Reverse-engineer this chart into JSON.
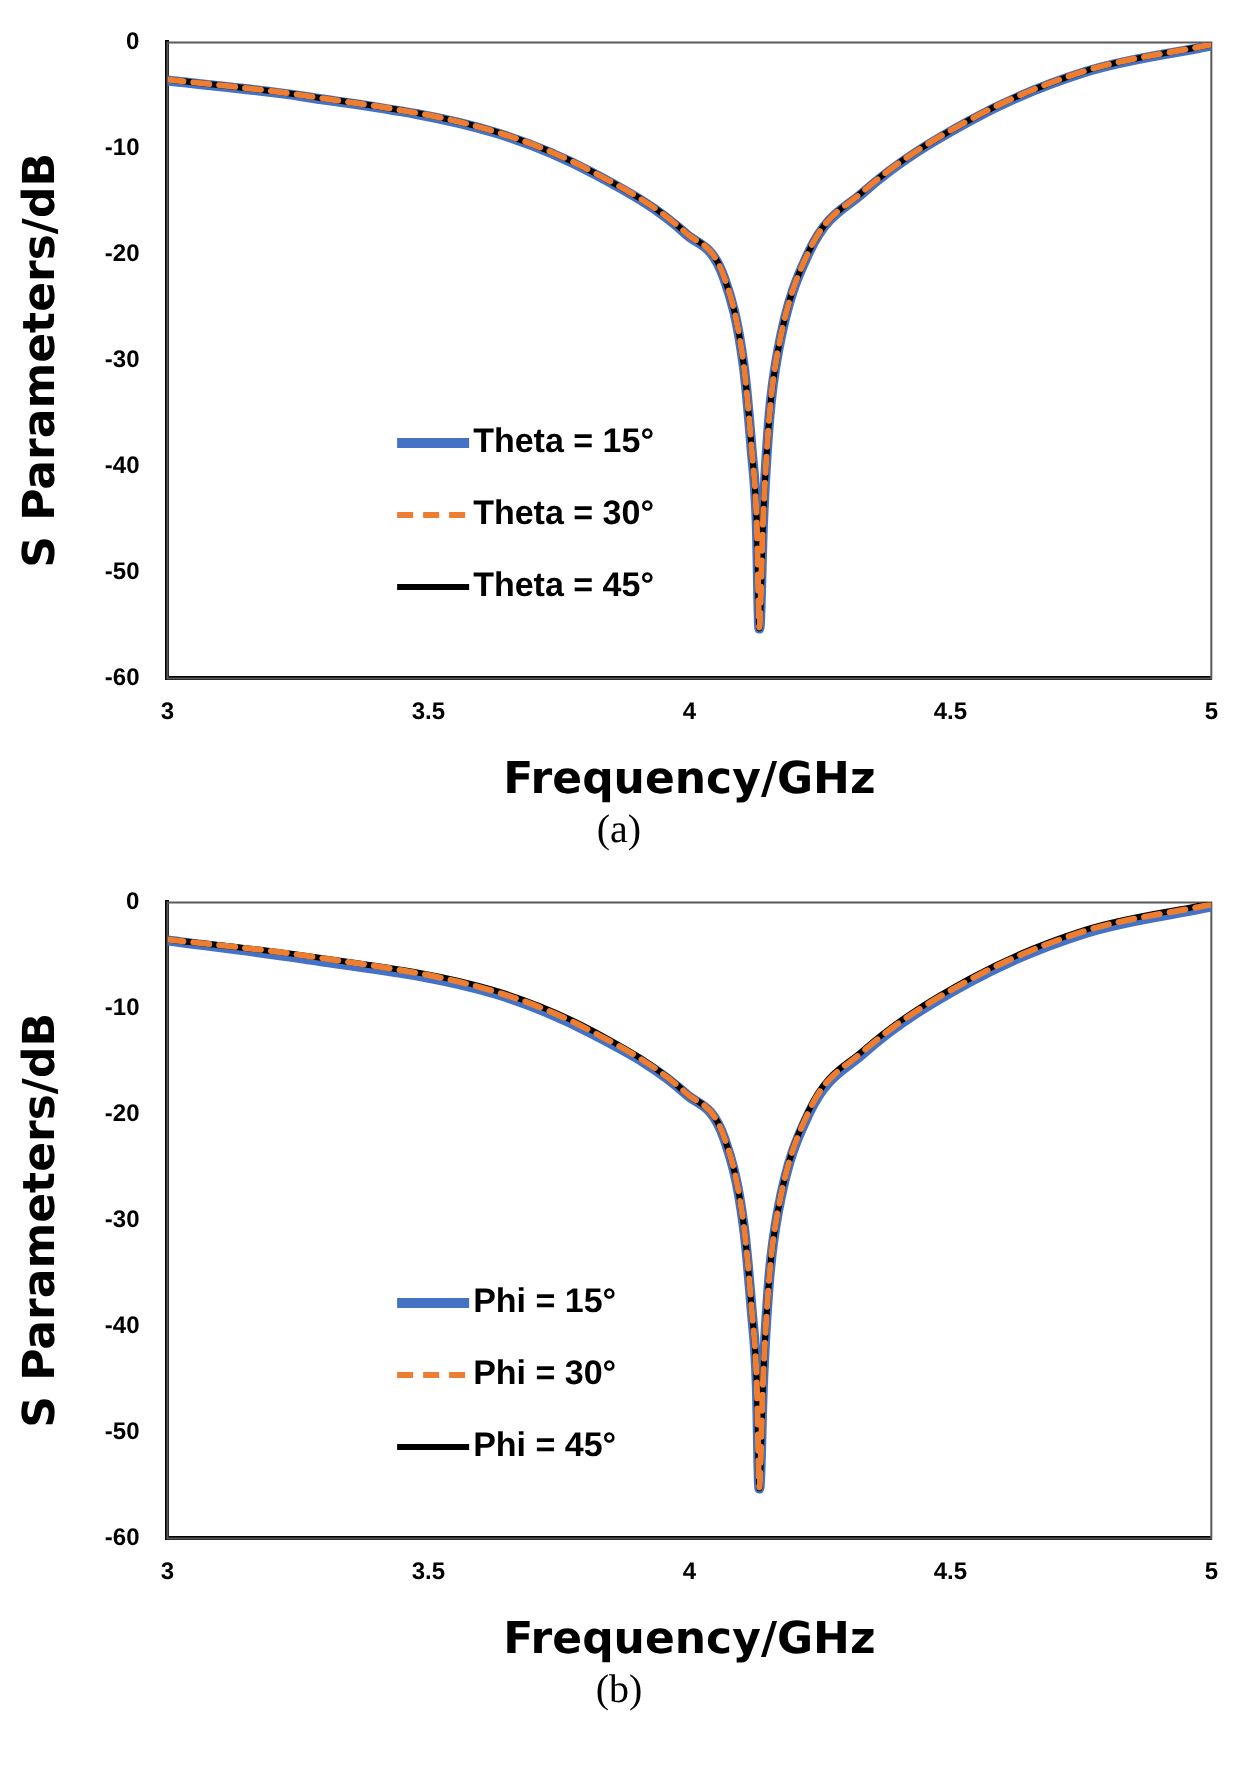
{
  "chart_data": [
    {
      "type": "line",
      "xlabel": "Frequency/GHz",
      "ylabel": "S Parameters/dB",
      "xlim": [
        3,
        5
      ],
      "xticks": [
        3,
        3.5,
        4,
        4.5,
        5
      ],
      "ylim": [
        -60,
        0
      ],
      "yticks": [
        -60,
        -50,
        -40,
        -30,
        -20,
        -10,
        0
      ],
      "grid": false,
      "legend": "bottom left",
      "marker": "none",
      "annotations": [
        "(a)"
      ],
      "x": [
        3,
        3.26,
        3.627,
        3.818,
        3.994,
        4.067,
        4.104,
        4.119,
        4.129,
        4.134,
        4.141,
        4.153,
        4.17,
        4.229,
        4.332,
        4.537,
        4.758,
        5
      ],
      "series": [
        {
          "name": "Theta = 15°",
          "color": "#4472c4",
          "line_style": "solid",
          "values": [
            -3.6,
            -5.1,
            -8.5,
            -12.4,
            -18.1,
            -22.3,
            -30.5,
            -38.3,
            -45.4,
            -55.3,
            -45.4,
            -35.5,
            -29.1,
            -19.8,
            -14.2,
            -7.4,
            -2.8,
            -0.3
          ]
        },
        {
          "name": "Theta = 30°",
          "color": "#ed7d31",
          "line_style": "dashed",
          "values": [
            -3.5,
            -5,
            -8.4,
            -12.3,
            -18,
            -22.2,
            -30.4,
            -38.2,
            -45.3,
            -55.2,
            -45.3,
            -35.4,
            -29,
            -19.7,
            -14.1,
            -7.3,
            -2.7,
            -0.2
          ]
        },
        {
          "name": "Theta = 45°",
          "color": "#000000",
          "line_style": "solid",
          "values": [
            -3.5,
            -5,
            -8.4,
            -12.3,
            -18,
            -22.2,
            -30.4,
            -38.2,
            -45.3,
            -55.3,
            -45.3,
            -35.4,
            -29,
            -19.7,
            -14.1,
            -7.3,
            -2.7,
            -0.2
          ]
        }
      ]
    },
    {
      "type": "line",
      "xlabel": "Frequency/GHz",
      "ylabel": "S Parameters/dB",
      "xlim": [
        3,
        5
      ],
      "xticks": [
        3,
        3.5,
        4,
        4.5,
        5
      ],
      "ylim": [
        -60,
        0
      ],
      "yticks": [
        -60,
        -50,
        -40,
        -30,
        -20,
        -10,
        0
      ],
      "grid": false,
      "legend": "bottom left",
      "marker": "none",
      "annotations": [
        "(b)"
      ],
      "x": [
        3,
        3.26,
        3.627,
        3.818,
        3.994,
        4.067,
        4.104,
        4.119,
        4.129,
        4.134,
        4.141,
        4.153,
        4.17,
        4.229,
        4.332,
        4.537,
        4.758,
        5
      ],
      "series": [
        {
          "name": "Phi = 15°",
          "color": "#4472c4",
          "line_style": "solid",
          "values": [
            -3.6,
            -5.3,
            -8.6,
            -12.5,
            -18.1,
            -22.3,
            -30.5,
            -38.3,
            -45.4,
            -55.3,
            -45.4,
            -35.5,
            -29.1,
            -19.9,
            -14.3,
            -7.5,
            -2.9,
            -0.4
          ]
        },
        {
          "name": "Phi = 30°",
          "color": "#ed7d31",
          "line_style": "dashed",
          "values": [
            -3.5,
            -5,
            -8.4,
            -12.3,
            -18,
            -22.2,
            -30.4,
            -38.2,
            -45.3,
            -55.2,
            -45.3,
            -35.4,
            -29,
            -19.7,
            -14.1,
            -7.3,
            -2.7,
            -0.2
          ]
        },
        {
          "name": "Phi = 45°",
          "color": "#000000",
          "line_style": "solid",
          "values": [
            -3.5,
            -5,
            -8.3,
            -12.2,
            -18,
            -22.2,
            -30.4,
            -38.2,
            -45.3,
            -55.3,
            -45.3,
            -35.4,
            -29,
            -19.6,
            -14,
            -7.2,
            -2.6,
            -0.1
          ]
        }
      ]
    }
  ]
}
